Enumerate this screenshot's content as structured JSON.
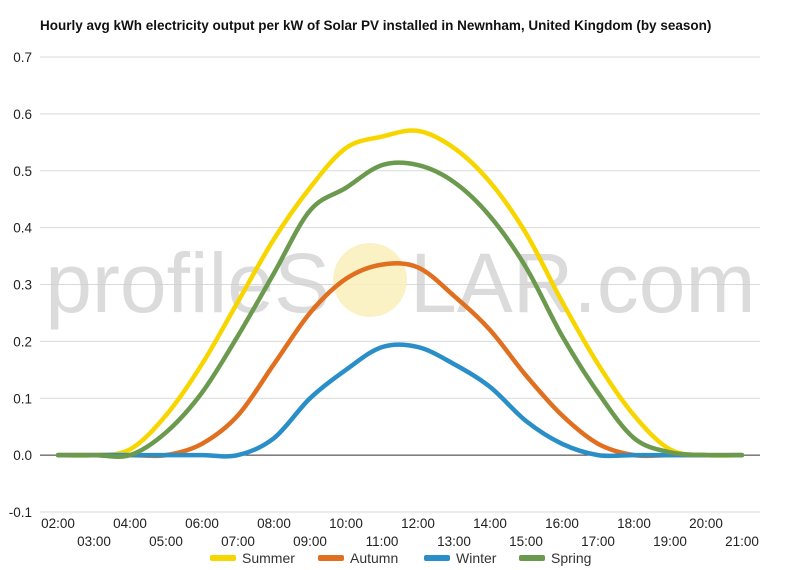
{
  "chart_data": {
    "type": "line",
    "title": "Hourly avg kWh electricity output per kW of Solar PV installed in Newnham, United Kingdom (by season)",
    "xlabel": "",
    "ylabel": "",
    "ylim": [
      -0.1,
      0.7
    ],
    "yticks": [
      "-0.1",
      "0.0",
      "0.1",
      "0.2",
      "0.3",
      "0.4",
      "0.5",
      "0.6",
      "0.7"
    ],
    "x": [
      "02:00",
      "03:00",
      "04:00",
      "05:00",
      "06:00",
      "07:00",
      "08:00",
      "09:00",
      "10:00",
      "11:00",
      "12:00",
      "13:00",
      "14:00",
      "15:00",
      "16:00",
      "17:00",
      "18:00",
      "19:00",
      "20:00",
      "21:00"
    ],
    "grid": true,
    "legend_position": "bottom",
    "series": [
      {
        "name": "Summer",
        "color": "#f7d600",
        "values": [
          0.0,
          0.0,
          0.01,
          0.07,
          0.16,
          0.27,
          0.38,
          0.47,
          0.54,
          0.56,
          0.57,
          0.54,
          0.48,
          0.39,
          0.27,
          0.16,
          0.07,
          0.01,
          0.0,
          0.0
        ]
      },
      {
        "name": "Autumn",
        "color": "#e07020",
        "values": [
          0.0,
          0.0,
          0.0,
          0.0,
          0.02,
          0.07,
          0.16,
          0.25,
          0.31,
          0.335,
          0.33,
          0.28,
          0.22,
          0.14,
          0.07,
          0.02,
          0.0,
          0.0,
          0.0,
          0.0
        ]
      },
      {
        "name": "Winter",
        "color": "#2a8fc8",
        "values": [
          0.0,
          0.0,
          0.0,
          0.0,
          0.0,
          0.0,
          0.03,
          0.1,
          0.15,
          0.19,
          0.19,
          0.16,
          0.12,
          0.06,
          0.02,
          0.0,
          0.0,
          0.0,
          0.0,
          0.0
        ]
      },
      {
        "name": "Spring",
        "color": "#6b9a4f",
        "values": [
          0.0,
          0.0,
          0.0,
          0.04,
          0.11,
          0.21,
          0.32,
          0.43,
          0.47,
          0.51,
          0.51,
          0.48,
          0.42,
          0.33,
          0.21,
          0.11,
          0.03,
          0.005,
          0.0,
          0.0
        ]
      }
    ]
  },
  "watermark": {
    "before": "profileS",
    "after": "LAR.com"
  }
}
